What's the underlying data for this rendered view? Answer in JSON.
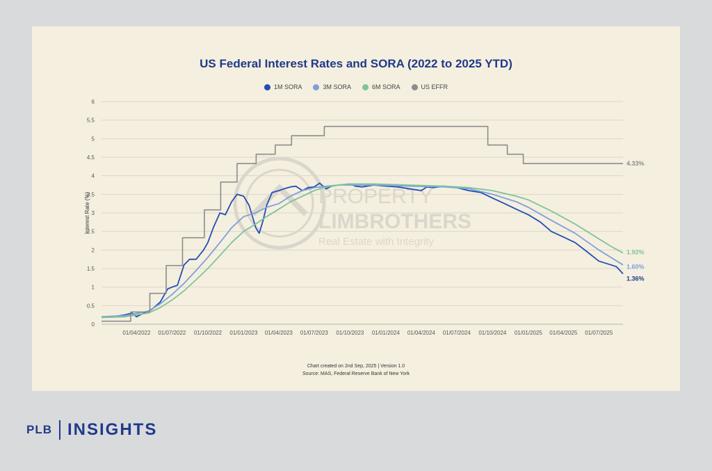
{
  "brand": {
    "left": "PLB",
    "right": "INSIGHTS"
  },
  "watermark": {
    "line1": "PROPERTY",
    "line2": "LIMBROTHERS",
    "tagline": "Real Estate with Integrity"
  },
  "footnote": {
    "line1": "Chart created on 2nd Sep, 2025 | Version 1.0",
    "line2": "Source: MAS, Federal Reserve Bank of New York"
  },
  "chart_data": {
    "type": "line",
    "title": "US Federal Interest Rates and SORA (2022 to 2025 YTD)",
    "ylabel": "Interest Rate (%)",
    "xlabel": "",
    "ylim": [
      0,
      6
    ],
    "yticks": [
      "0",
      "0.5",
      "1",
      "1.5",
      "2",
      "2.5",
      "3",
      "3.5",
      "4",
      "4.5",
      "5",
      "5.5",
      "6"
    ],
    "xticks": [
      "01/04/2022",
      "01/07/2022",
      "01/10/2022",
      "01/01/2023",
      "01/04/2023",
      "01/07/2023",
      "01/10/2023",
      "01/01/2024",
      "01/04/2024",
      "01/07/2024",
      "01/10/2024",
      "01/01/2025",
      "01/04/2025",
      "01/07/2025"
    ],
    "xrange": [
      "2022-01-01",
      "2025-09-01"
    ],
    "grid": true,
    "legend_position": "top-center",
    "series": [
      {
        "name": "1M SORA",
        "color": "#1f4fb4",
        "end_label": "1.36%",
        "points": [
          [
            "2022-01-01",
            0.18
          ],
          [
            "2022-02-01",
            0.2
          ],
          [
            "2022-03-01",
            0.25
          ],
          [
            "2022-03-20",
            0.3
          ],
          [
            "2022-04-01",
            0.2
          ],
          [
            "2022-04-20",
            0.3
          ],
          [
            "2022-05-10",
            0.4
          ],
          [
            "2022-06-01",
            0.6
          ],
          [
            "2022-06-20",
            0.95
          ],
          [
            "2022-07-01",
            1.0
          ],
          [
            "2022-07-15",
            1.05
          ],
          [
            "2022-08-01",
            1.6
          ],
          [
            "2022-08-15",
            1.75
          ],
          [
            "2022-09-01",
            1.75
          ],
          [
            "2022-09-20",
            2.0
          ],
          [
            "2022-10-01",
            2.2
          ],
          [
            "2022-10-15",
            2.6
          ],
          [
            "2022-11-01",
            3.0
          ],
          [
            "2022-11-15",
            2.95
          ],
          [
            "2022-12-01",
            3.3
          ],
          [
            "2022-12-15",
            3.5
          ],
          [
            "2023-01-01",
            3.45
          ],
          [
            "2023-01-15",
            3.2
          ],
          [
            "2023-02-01",
            2.6
          ],
          [
            "2023-02-10",
            2.45
          ],
          [
            "2023-02-20",
            2.8
          ],
          [
            "2023-03-01",
            3.2
          ],
          [
            "2023-03-15",
            3.55
          ],
          [
            "2023-04-01",
            3.6
          ],
          [
            "2023-04-15",
            3.65
          ],
          [
            "2023-05-01",
            3.7
          ],
          [
            "2023-05-15",
            3.72
          ],
          [
            "2023-06-01",
            3.6
          ],
          [
            "2023-06-15",
            3.68
          ],
          [
            "2023-07-01",
            3.7
          ],
          [
            "2023-07-15",
            3.8
          ],
          [
            "2023-08-01",
            3.65
          ],
          [
            "2023-08-15",
            3.72
          ],
          [
            "2023-09-01",
            3.75
          ],
          [
            "2023-10-01",
            3.78
          ],
          [
            "2023-10-15",
            3.72
          ],
          [
            "2023-11-01",
            3.7
          ],
          [
            "2023-12-01",
            3.75
          ],
          [
            "2024-01-01",
            3.72
          ],
          [
            "2024-02-01",
            3.7
          ],
          [
            "2024-03-01",
            3.65
          ],
          [
            "2024-04-01",
            3.6
          ],
          [
            "2024-04-15",
            3.7
          ],
          [
            "2024-05-01",
            3.68
          ],
          [
            "2024-06-01",
            3.72
          ],
          [
            "2024-07-01",
            3.68
          ],
          [
            "2024-08-01",
            3.6
          ],
          [
            "2024-09-01",
            3.55
          ],
          [
            "2024-10-01",
            3.4
          ],
          [
            "2024-11-01",
            3.25
          ],
          [
            "2024-12-01",
            3.1
          ],
          [
            "2025-01-01",
            2.95
          ],
          [
            "2025-02-01",
            2.75
          ],
          [
            "2025-03-01",
            2.5
          ],
          [
            "2025-04-01",
            2.35
          ],
          [
            "2025-05-01",
            2.2
          ],
          [
            "2025-06-01",
            1.95
          ],
          [
            "2025-07-01",
            1.7
          ],
          [
            "2025-08-01",
            1.6
          ],
          [
            "2025-08-15",
            1.55
          ],
          [
            "2025-09-01",
            1.36
          ]
        ]
      },
      {
        "name": "3M SORA",
        "color": "#7f9fdc",
        "end_label": "1.60%",
        "points": [
          [
            "2022-01-01",
            0.2
          ],
          [
            "2022-03-01",
            0.23
          ],
          [
            "2022-05-01",
            0.35
          ],
          [
            "2022-06-01",
            0.55
          ],
          [
            "2022-07-01",
            0.8
          ],
          [
            "2022-08-01",
            1.1
          ],
          [
            "2022-09-01",
            1.45
          ],
          [
            "2022-10-01",
            1.8
          ],
          [
            "2022-11-01",
            2.2
          ],
          [
            "2022-12-01",
            2.6
          ],
          [
            "2023-01-01",
            2.9
          ],
          [
            "2023-02-01",
            3.0
          ],
          [
            "2023-03-01",
            3.15
          ],
          [
            "2023-04-01",
            3.25
          ],
          [
            "2023-05-01",
            3.45
          ],
          [
            "2023-06-01",
            3.6
          ],
          [
            "2023-07-01",
            3.68
          ],
          [
            "2023-08-01",
            3.72
          ],
          [
            "2023-09-01",
            3.75
          ],
          [
            "2023-10-01",
            3.75
          ],
          [
            "2023-12-01",
            3.75
          ],
          [
            "2024-03-01",
            3.72
          ],
          [
            "2024-06-01",
            3.7
          ],
          [
            "2024-08-01",
            3.65
          ],
          [
            "2024-10-01",
            3.5
          ],
          [
            "2024-12-01",
            3.3
          ],
          [
            "2025-01-01",
            3.15
          ],
          [
            "2025-03-01",
            2.8
          ],
          [
            "2025-05-01",
            2.45
          ],
          [
            "2025-07-01",
            2.0
          ],
          [
            "2025-08-01",
            1.8
          ],
          [
            "2025-09-01",
            1.6
          ]
        ]
      },
      {
        "name": "6M SORA",
        "color": "#7dc49a",
        "end_label": "1.92%",
        "points": [
          [
            "2022-01-01",
            0.18
          ],
          [
            "2022-03-01",
            0.2
          ],
          [
            "2022-05-01",
            0.3
          ],
          [
            "2022-06-01",
            0.45
          ],
          [
            "2022-07-01",
            0.65
          ],
          [
            "2022-08-01",
            0.9
          ],
          [
            "2022-09-01",
            1.2
          ],
          [
            "2022-10-01",
            1.5
          ],
          [
            "2022-11-01",
            1.85
          ],
          [
            "2022-12-01",
            2.2
          ],
          [
            "2023-01-01",
            2.5
          ],
          [
            "2023-02-01",
            2.7
          ],
          [
            "2023-03-01",
            2.9
          ],
          [
            "2023-04-01",
            3.1
          ],
          [
            "2023-05-01",
            3.3
          ],
          [
            "2023-06-01",
            3.45
          ],
          [
            "2023-07-01",
            3.6
          ],
          [
            "2023-08-01",
            3.7
          ],
          [
            "2023-09-01",
            3.75
          ],
          [
            "2023-10-01",
            3.78
          ],
          [
            "2023-12-01",
            3.78
          ],
          [
            "2024-03-01",
            3.75
          ],
          [
            "2024-06-01",
            3.72
          ],
          [
            "2024-08-01",
            3.68
          ],
          [
            "2024-10-01",
            3.6
          ],
          [
            "2024-12-01",
            3.45
          ],
          [
            "2025-01-01",
            3.35
          ],
          [
            "2025-03-01",
            3.05
          ],
          [
            "2025-05-01",
            2.7
          ],
          [
            "2025-07-01",
            2.3
          ],
          [
            "2025-08-01",
            2.1
          ],
          [
            "2025-09-01",
            1.92
          ]
        ]
      },
      {
        "name": "US EFFR",
        "color": "#8c8c8c",
        "end_label": "4.33%",
        "step": true,
        "points": [
          [
            "2022-01-01",
            0.08
          ],
          [
            "2022-03-17",
            0.33
          ],
          [
            "2022-05-05",
            0.83
          ],
          [
            "2022-06-16",
            1.58
          ],
          [
            "2022-07-28",
            2.33
          ],
          [
            "2022-09-22",
            3.08
          ],
          [
            "2022-11-03",
            3.83
          ],
          [
            "2022-12-15",
            4.33
          ],
          [
            "2023-02-02",
            4.58
          ],
          [
            "2023-03-23",
            4.83
          ],
          [
            "2023-05-04",
            5.08
          ],
          [
            "2023-07-27",
            5.33
          ],
          [
            "2024-09-19",
            4.83
          ],
          [
            "2024-11-08",
            4.58
          ],
          [
            "2024-12-19",
            4.33
          ],
          [
            "2025-09-01",
            4.33
          ]
        ]
      }
    ]
  }
}
